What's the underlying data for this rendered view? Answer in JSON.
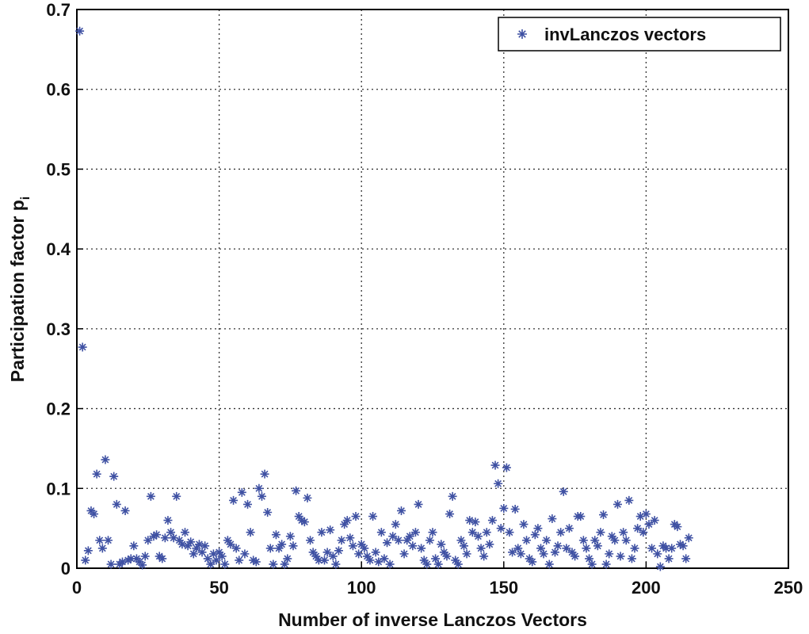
{
  "chart_data": {
    "type": "scatter",
    "xlabel": "Number of inverse Lanczos Vectors",
    "ylabel": "Participation factor p",
    "ylabel_subscript": "i",
    "xlim": [
      0,
      250
    ],
    "ylim": [
      0,
      0.7
    ],
    "xticks": [
      0,
      50,
      100,
      150,
      200,
      250
    ],
    "yticks": [
      0,
      0.1,
      0.2,
      0.3,
      0.4,
      0.5,
      0.6,
      0.7
    ],
    "grid": true,
    "legend": "upper right",
    "series": [
      {
        "name": "invLanczos vectors",
        "color": "#3f51a3",
        "x": [
          1,
          2,
          3,
          4,
          5,
          6,
          7,
          8,
          9,
          10,
          11,
          12,
          13,
          14,
          15,
          16,
          17,
          18,
          19,
          20,
          21,
          22,
          23,
          24,
          25,
          26,
          27,
          28,
          29,
          30,
          31,
          32,
          33,
          34,
          35,
          36,
          37,
          38,
          39,
          40,
          41,
          42,
          43,
          44,
          45,
          46,
          47,
          48,
          49,
          50,
          51,
          52,
          53,
          54,
          55,
          56,
          57,
          58,
          59,
          60,
          61,
          62,
          63,
          64,
          65,
          66,
          67,
          68,
          69,
          70,
          71,
          72,
          73,
          74,
          75,
          76,
          77,
          78,
          79,
          80,
          81,
          82,
          83,
          84,
          85,
          86,
          87,
          88,
          89,
          90,
          91,
          92,
          93,
          94,
          95,
          96,
          97,
          98,
          99,
          100,
          101,
          102,
          103,
          104,
          105,
          106,
          107,
          108,
          109,
          110,
          111,
          112,
          113,
          114,
          115,
          116,
          117,
          118,
          119,
          120,
          121,
          122,
          123,
          124,
          125,
          126,
          127,
          128,
          129,
          130,
          131,
          132,
          133,
          134,
          135,
          136,
          137,
          138,
          139,
          140,
          141,
          142,
          143,
          144,
          145,
          146,
          147,
          148,
          149,
          150,
          151,
          152,
          153,
          154,
          155,
          156,
          157,
          158,
          159,
          160,
          161,
          162,
          163,
          164,
          165,
          166,
          167,
          168,
          169,
          170,
          171,
          172,
          173,
          174,
          175,
          176,
          177,
          178,
          179,
          180,
          181,
          182,
          183,
          184,
          185,
          186,
          187,
          188,
          189,
          190,
          191,
          192,
          193,
          194,
          195,
          196,
          197,
          198,
          199,
          200,
          201,
          202,
          203,
          204,
          205,
          206,
          207,
          208,
          209,
          210,
          211,
          212,
          213,
          214,
          215
        ],
        "values": [
          0.673,
          0.277,
          0.01,
          0.022,
          0.072,
          0.068,
          0.118,
          0.035,
          0.025,
          0.136,
          0.035,
          0.005,
          0.115,
          0.08,
          0.005,
          0.008,
          0.072,
          0.01,
          0.012,
          0.028,
          0.012,
          0.008,
          0.004,
          0.015,
          0.035,
          0.09,
          0.04,
          0.042,
          0.015,
          0.012,
          0.038,
          0.06,
          0.045,
          0.038,
          0.09,
          0.035,
          0.03,
          0.045,
          0.028,
          0.033,
          0.018,
          0.025,
          0.03,
          0.02,
          0.028,
          0.012,
          0.005,
          0.018,
          0.01,
          0.02,
          0.015,
          0.005,
          0.035,
          0.03,
          0.085,
          0.025,
          0.01,
          0.095,
          0.018,
          0.08,
          0.045,
          0.01,
          0.008,
          0.1,
          0.09,
          0.118,
          0.07,
          0.025,
          0.005,
          0.042,
          0.025,
          0.03,
          0.005,
          0.012,
          0.04,
          0.028,
          0.097,
          0.065,
          0.06,
          0.058,
          0.088,
          0.035,
          0.02,
          0.015,
          0.01,
          0.045,
          0.01,
          0.02,
          0.048,
          0.015,
          0.005,
          0.022,
          0.035,
          0.055,
          0.06,
          0.038,
          0.028,
          0.065,
          0.018,
          0.03,
          0.025,
          0.015,
          0.01,
          0.065,
          0.02,
          0.008,
          0.045,
          0.012,
          0.032,
          0.005,
          0.04,
          0.055,
          0.035,
          0.072,
          0.018,
          0.035,
          0.04,
          0.028,
          0.045,
          0.08,
          0.025,
          0.01,
          0.005,
          0.035,
          0.045,
          0.012,
          0.005,
          0.03,
          0.02,
          0.015,
          0.068,
          0.09,
          0.01,
          0.005,
          0.035,
          0.028,
          0.018,
          0.06,
          0.045,
          0.058,
          0.04,
          0.025,
          0.015,
          0.045,
          0.03,
          0.06,
          0.129,
          0.106,
          0.05,
          0.075,
          0.126,
          0.045,
          0.02,
          0.074,
          0.025,
          0.018,
          0.055,
          0.035,
          0.012,
          0.008,
          0.042,
          0.05,
          0.025,
          0.018,
          0.035,
          0.005,
          0.062,
          0.02,
          0.028,
          0.045,
          0.096,
          0.025,
          0.05,
          0.02,
          0.015,
          0.065,
          0.065,
          0.035,
          0.025,
          0.012,
          0.005,
          0.035,
          0.028,
          0.045,
          0.067,
          0.005,
          0.018,
          0.04,
          0.035,
          0.08,
          0.015,
          0.045,
          0.035,
          0.085,
          0.012,
          0.025,
          0.05,
          0.065,
          0.045,
          0.068,
          0.055,
          0.025,
          0.06,
          0.018,
          0.002,
          0.028,
          0.025,
          0.012,
          0.025,
          0.055,
          0.052,
          0.03,
          0.028,
          0.012,
          0.038
        ]
      }
    ]
  }
}
